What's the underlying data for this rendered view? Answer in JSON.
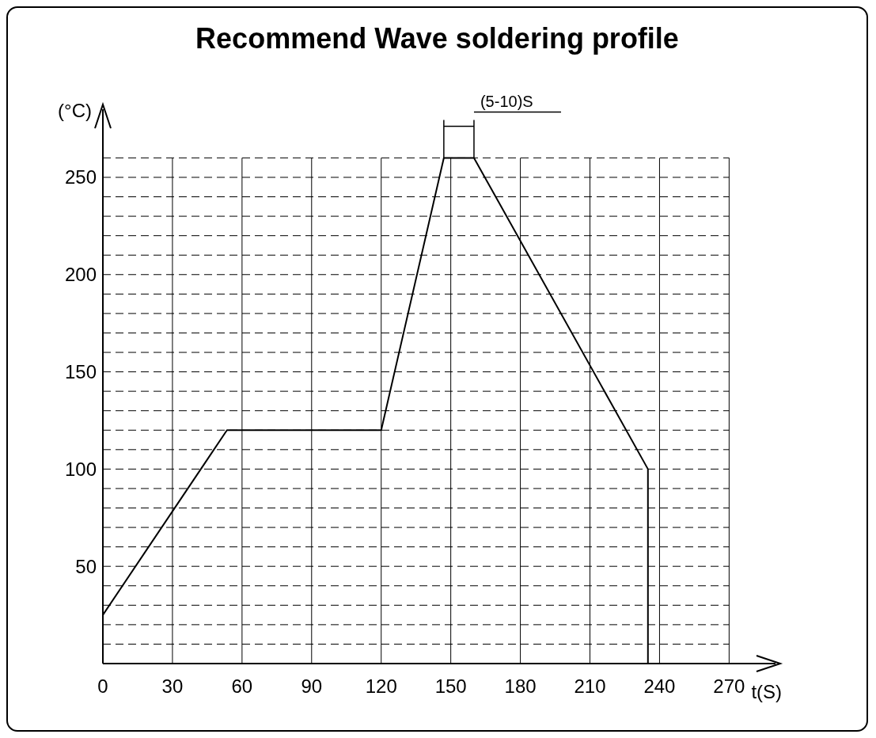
{
  "chart_data": {
    "type": "line",
    "title": "Recommend Wave soldering profile",
    "xlabel": "t(S)",
    "ylabel": "(°C)",
    "annotations": [
      {
        "text": "(5-10)S",
        "x": 160,
        "y": 260
      }
    ],
    "x": [
      0,
      53.5,
      120,
      147,
      160,
      235,
      235
    ],
    "series": [
      {
        "color": "#000000",
        "values": [
          25,
          120,
          120,
          260,
          260,
          100,
          0
        ]
      }
    ],
    "xlim": [
      0,
      290
    ],
    "ylim": [
      0,
      285
    ],
    "xticks": [
      0,
      30,
      60,
      90,
      120,
      150,
      180,
      210,
      240,
      270
    ],
    "yticks": [
      {
        "value": 10,
        "label": null
      },
      {
        "value": 20,
        "label": null
      },
      {
        "value": 30,
        "label": null
      },
      {
        "value": 40,
        "label": null
      },
      50,
      {
        "value": 60,
        "label": null
      },
      {
        "value": 70,
        "label": null
      },
      {
        "value": 80,
        "label": null
      },
      {
        "value": 90,
        "label": null
      },
      100,
      {
        "value": 110,
        "label": null
      },
      {
        "value": 120,
        "label": null
      },
      {
        "value": 130,
        "label": null
      },
      {
        "value": 140,
        "label": null
      },
      150,
      {
        "value": 160,
        "label": null
      },
      {
        "value": 170,
        "label": null
      },
      {
        "value": 180,
        "label": null
      },
      {
        "value": 190,
        "label": null
      },
      200,
      {
        "value": 210,
        "label": null
      },
      {
        "value": 220,
        "label": null
      },
      {
        "value": 230,
        "label": null
      },
      {
        "value": 240,
        "label": null
      },
      250,
      {
        "value": 260,
        "label": null
      }
    ],
    "grid": true,
    "marker": "none",
    "line_style": "solid"
  }
}
